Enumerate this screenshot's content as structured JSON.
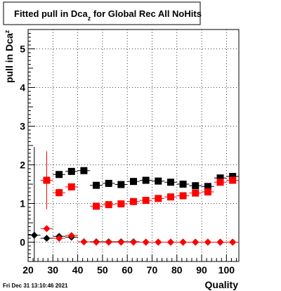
{
  "chart_data": {
    "type": "scatter",
    "title": {
      "main": "Fitted pull in Dca",
      "sub": "z",
      "rest": " for Global Rec All NoHits"
    },
    "xlabel": "Quality",
    "ylabel": {
      "main": "pull in Dca",
      "sub": "z"
    },
    "xlim": [
      20,
      105
    ],
    "ylim": [
      -0.5,
      5.5
    ],
    "xticks": [
      20,
      30,
      40,
      50,
      60,
      70,
      80,
      90,
      100
    ],
    "yticks": [
      0,
      1,
      2,
      3,
      4,
      5
    ],
    "grid": true,
    "x_bin_halfwidth": 2.5,
    "timestamp": "Fri Dec 31 13:10:46 2021",
    "series": [
      {
        "marker": "square",
        "color": "#000000",
        "x": [
          32.5,
          37.5,
          42.5,
          47.5,
          52.5,
          57.5,
          62.5,
          67.5,
          72.5,
          77.5,
          82.5,
          87.5,
          92.5,
          97.5,
          102.5
        ],
        "y": [
          1.75,
          1.83,
          1.85,
          1.47,
          1.52,
          1.49,
          1.57,
          1.6,
          1.58,
          1.55,
          1.5,
          1.46,
          1.44,
          1.66,
          1.7
        ],
        "err": [
          0.08,
          0.06,
          0.05,
          0.02,
          0.02,
          0.02,
          0.02,
          0.02,
          0.02,
          0.02,
          0.02,
          0.02,
          0.02,
          0.02,
          0.02
        ]
      },
      {
        "marker": "square",
        "color": "#ff0000",
        "x": [
          27.5,
          32.5,
          37.5,
          47.5,
          52.5,
          57.5,
          62.5,
          67.5,
          72.5,
          77.5,
          82.5,
          87.5,
          92.5,
          97.5,
          102.5
        ],
        "y": [
          1.6,
          1.28,
          1.43,
          0.93,
          0.97,
          0.99,
          1.05,
          1.08,
          1.13,
          1.17,
          1.2,
          1.27,
          1.3,
          1.55,
          1.6
        ],
        "err": [
          0.75,
          0.1,
          0.08,
          0.02,
          0.02,
          0.02,
          0.02,
          0.02,
          0.02,
          0.02,
          0.02,
          0.02,
          0.02,
          0.02,
          0.02
        ]
      },
      {
        "marker": "diamond",
        "color": "#000000",
        "x": [
          22.5,
          27.5,
          32.5,
          37.5,
          42.5,
          47.5,
          52.5,
          57.5,
          62.5,
          67.5,
          72.5,
          77.5,
          82.5,
          87.5,
          92.5,
          97.5,
          102.5
        ],
        "y": [
          0.18,
          0.1,
          0.15,
          0.13,
          0.01,
          0.01,
          0.01,
          0.01,
          0.01,
          0.0,
          0.0,
          0.0,
          0.0,
          0.0,
          0.0,
          0.0,
          0.0
        ],
        "err": [
          2.28,
          0.05,
          0.04,
          0.03,
          0.01,
          0.01,
          0.01,
          0.01,
          0.01,
          0.01,
          0.01,
          0.01,
          0.01,
          0.01,
          0.01,
          0.01,
          0.01
        ]
      },
      {
        "marker": "diamond",
        "color": "#ff0000",
        "x": [
          27.5,
          32.5,
          37.5,
          42.5,
          47.5,
          52.5,
          57.5,
          62.5,
          67.5,
          72.5,
          77.5,
          82.5,
          87.5,
          92.5,
          97.5,
          102.5
        ],
        "y": [
          0.35,
          0.1,
          0.17,
          0.01,
          0.0,
          0.0,
          0.0,
          0.0,
          0.0,
          0.0,
          0.0,
          0.0,
          0.0,
          0.0,
          0.0,
          0.0
        ],
        "err": [
          0.06,
          0.04,
          0.04,
          0.01,
          0.01,
          0.01,
          0.01,
          0.01,
          0.01,
          0.01,
          0.01,
          0.01,
          0.01,
          0.01,
          0.01,
          0.01
        ]
      }
    ]
  }
}
